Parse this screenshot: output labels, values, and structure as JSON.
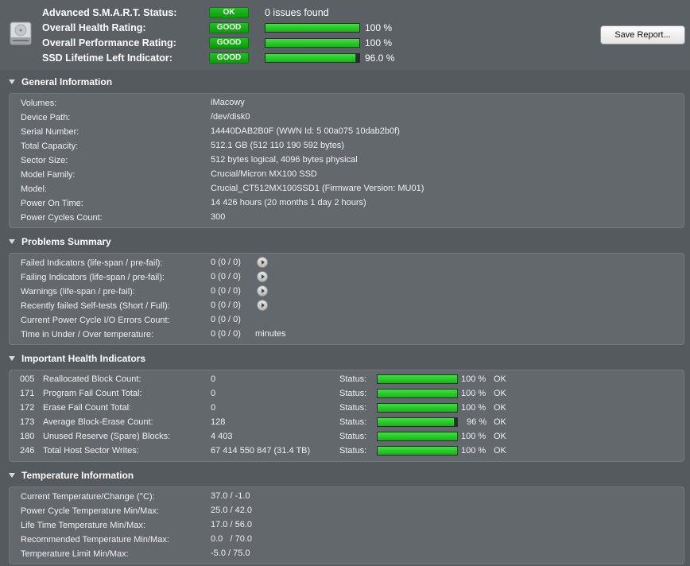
{
  "header": {
    "rows": [
      {
        "label": "Advanced S.M.A.R.T. Status:",
        "badge": "OK",
        "text": "0 issues found"
      },
      {
        "label": "Overall Health Rating:",
        "badge": "GOOD",
        "percent": "100 %",
        "level": 100
      },
      {
        "label": "Overall Performance Rating:",
        "badge": "GOOD",
        "percent": "100 %",
        "level": 100
      },
      {
        "label": "SSD Lifetime Left Indicator:",
        "badge": "GOOD",
        "percent": "96.0 %",
        "level": 96
      }
    ],
    "save_label": "Save Report...",
    "icon": "hard-drive-icon"
  },
  "general": {
    "title": "General Information",
    "rows": [
      {
        "key": "Volumes:",
        "value": "iMacowy"
      },
      {
        "key": "Device Path:",
        "value": "/dev/disk0"
      },
      {
        "key": "Serial Number:",
        "value": "14440DAB2B0F (WWN Id: 5 00a075 10dab2b0f)"
      },
      {
        "key": "Total Capacity:",
        "value": "512.1 GB (512 110 190 592 bytes)"
      },
      {
        "key": "Sector Size:",
        "value": "512 bytes logical, 4096 bytes physical"
      },
      {
        "key": "Model Family:",
        "value": "Crucial/Micron MX100 SSD"
      },
      {
        "key": "Model:",
        "value": "Crucial_CT512MX100SSD1  (Firmware Version: MU01)"
      },
      {
        "key": "Power On Time:",
        "value": "14 426 hours (20 months 1 day 2 hours)"
      },
      {
        "key": "Power Cycles Count:",
        "value": "300"
      }
    ]
  },
  "problems": {
    "title": "Problems Summary",
    "rows": [
      {
        "key": "Failed Indicators (life-span / pre-fail):",
        "value": "0 (0 / 0)",
        "arrow": true
      },
      {
        "key": "Failing Indicators (life-span / pre-fail):",
        "value": "0 (0 / 0)",
        "arrow": true
      },
      {
        "key": "Warnings (life-span / pre-fail):",
        "value": "0 (0 / 0)",
        "arrow": true
      },
      {
        "key": "Recently failed Self-tests (Short / Full):",
        "value": "0 (0 / 0)",
        "arrow": true
      },
      {
        "key": "Current Power Cycle I/O Errors Count:",
        "value": "0 (0 / 0)"
      },
      {
        "key": "Time in Under / Over temperature:",
        "value": "0 (0 / 0)",
        "unit": "minutes"
      }
    ]
  },
  "health": {
    "title": "Important Health Indicators",
    "status_label": "Status:",
    "rows": [
      {
        "id": "005",
        "name": "Reallocated Block Count:",
        "value": "0",
        "percent": "100 %",
        "level": 100,
        "state": "OK"
      },
      {
        "id": "171",
        "name": "Program Fail Count Total:",
        "value": "0",
        "percent": "100 %",
        "level": 100,
        "state": "OK"
      },
      {
        "id": "172",
        "name": "Erase Fail Count Total:",
        "value": "0",
        "percent": "100 %",
        "level": 100,
        "state": "OK"
      },
      {
        "id": "173",
        "name": "Average Block-Erase Count:",
        "value": "128",
        "percent": "96 %",
        "level": 96,
        "state": "OK"
      },
      {
        "id": "180",
        "name": "Unused Reserve (Spare) Blocks:",
        "value": "4 403",
        "percent": "100 %",
        "level": 100,
        "state": "OK"
      },
      {
        "id": "246",
        "name": "Total Host Sector Writes:",
        "value": "67 414 550 847 (31.4 TB)",
        "percent": "100 %",
        "level": 100,
        "state": "OK"
      }
    ]
  },
  "temperature": {
    "title": "Temperature Information",
    "rows": [
      {
        "key": "Current Temperature/Change (°C):",
        "value": "37.0 / -1.0"
      },
      {
        "key": "Power Cycle Temperature Min/Max:",
        "value": "25.0 / 42.0"
      },
      {
        "key": "Life Time Temperature Min/Max:",
        "value": "17.0 / 56.0"
      },
      {
        "key": "Recommended Temperature Min/Max:",
        "value": "0.0   / 70.0"
      },
      {
        "key": "Temperature Limit Min/Max:",
        "value": "-5.0 / 75.0"
      }
    ]
  }
}
